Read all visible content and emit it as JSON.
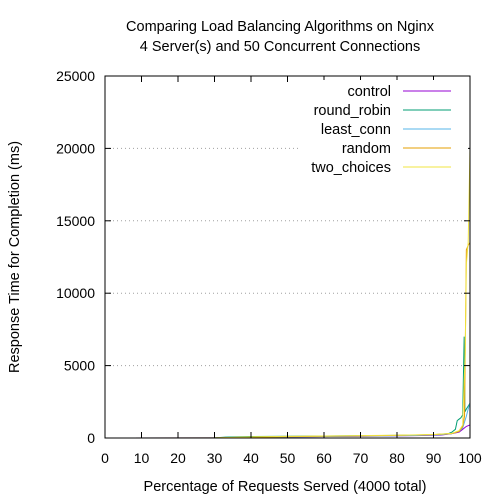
{
  "chart_data": {
    "type": "line",
    "title_lines": [
      "Comparing Load Balancing Algorithms on Nginx",
      "4 Server(s) and 50 Concurrent Connections"
    ],
    "xlabel": "Percentage of Requests Served (4000 total)",
    "ylabel": "Response Time for Completion (ms)",
    "xlim": [
      0,
      100
    ],
    "ylim": [
      0,
      25000
    ],
    "x_ticks": [
      0,
      10,
      20,
      30,
      40,
      50,
      60,
      70,
      80,
      90,
      100
    ],
    "y_ticks": [
      0,
      5000,
      10000,
      15000,
      20000,
      25000
    ],
    "grid": "horizontal-dotted",
    "legend_position": "top-right",
    "series": [
      {
        "name": "control",
        "color": "#9400d3",
        "points": [
          [
            0,
            0
          ],
          [
            30,
            10
          ],
          [
            45,
            40
          ],
          [
            50,
            70
          ],
          [
            54,
            90
          ],
          [
            70,
            120
          ],
          [
            85,
            160
          ],
          [
            92,
            200
          ],
          [
            95,
            300
          ],
          [
            97,
            400
          ],
          [
            98,
            600
          ],
          [
            99,
            800
          ],
          [
            100,
            900
          ]
        ]
      },
      {
        "name": "round_robin",
        "color": "#009e73",
        "points": [
          [
            0,
            0
          ],
          [
            30,
            10
          ],
          [
            33,
            60
          ],
          [
            40,
            100
          ],
          [
            60,
            140
          ],
          [
            80,
            180
          ],
          [
            90,
            220
          ],
          [
            94,
            300
          ],
          [
            95,
            400
          ],
          [
            96,
            600
          ],
          [
            96.5,
            1200
          ],
          [
            97,
            1300
          ],
          [
            97.5,
            1400
          ],
          [
            98,
            1600
          ],
          [
            98.4,
            7000
          ],
          [
            98.6,
            1800
          ],
          [
            99,
            2000
          ],
          [
            100,
            2400
          ]
        ]
      },
      {
        "name": "least_conn",
        "color": "#56b4e9",
        "points": [
          [
            0,
            0
          ],
          [
            30,
            10
          ],
          [
            50,
            80
          ],
          [
            70,
            130
          ],
          [
            85,
            170
          ],
          [
            92,
            220
          ],
          [
            95,
            300
          ],
          [
            97,
            450
          ],
          [
            98,
            700
          ],
          [
            99,
            1500
          ],
          [
            99.5,
            2000
          ],
          [
            100,
            2400
          ]
        ]
      },
      {
        "name": "random",
        "color": "#e69f00",
        "points": [
          [
            0,
            0
          ],
          [
            30,
            10
          ],
          [
            40,
            60
          ],
          [
            60,
            120
          ],
          [
            80,
            180
          ],
          [
            90,
            230
          ],
          [
            95,
            300
          ],
          [
            97,
            450
          ],
          [
            98,
            800
          ],
          [
            98.5,
            1500
          ],
          [
            99,
            13000
          ],
          [
            99.5,
            13300
          ],
          [
            100,
            13500
          ]
        ]
      },
      {
        "name": "two_choices",
        "color": "#f0e442",
        "points": [
          [
            0,
            0
          ],
          [
            30,
            10
          ],
          [
            40,
            80
          ],
          [
            60,
            140
          ],
          [
            80,
            190
          ],
          [
            90,
            240
          ],
          [
            95,
            320
          ],
          [
            97,
            500
          ],
          [
            98,
            900
          ],
          [
            98.7,
            6000
          ],
          [
            99,
            12000
          ],
          [
            99.5,
            13500
          ],
          [
            100,
            20000
          ]
        ]
      }
    ]
  }
}
